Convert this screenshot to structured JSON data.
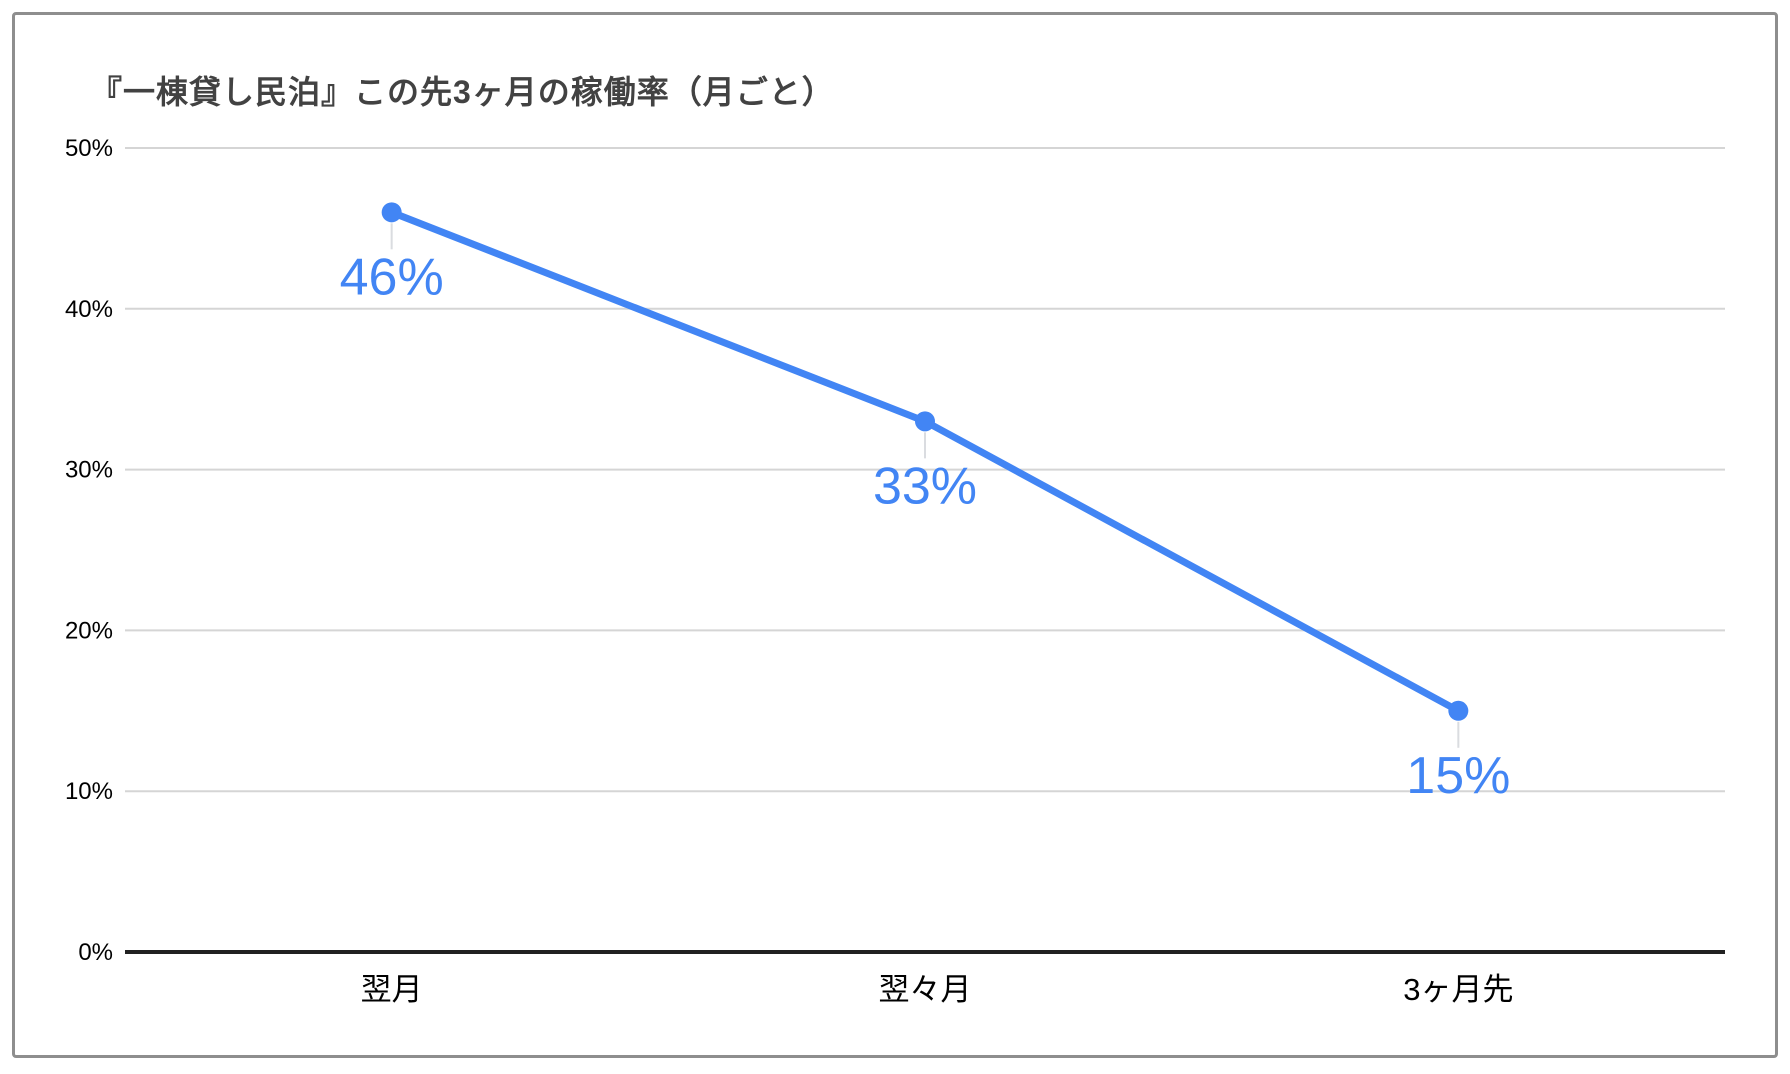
{
  "frame": {
    "background": "#ffffff",
    "border_color": "#8e8e8e"
  },
  "chart_data": {
    "type": "line",
    "title": "『一棟貸し民泊』この先3ヶ月の稼働率（月ごと）",
    "categories": [
      "翌月",
      "翌々月",
      "3ヶ月先"
    ],
    "series": [
      {
        "color": "#4285f4",
        "values": [
          46,
          33,
          15
        ],
        "point_labels": [
          "46%",
          "33%",
          "15%"
        ]
      }
    ],
    "xlabel": "",
    "ylabel": "",
    "ylim": [
      0,
      50
    ],
    "y_ticks": [
      {
        "value": 0,
        "label": "0%"
      },
      {
        "value": 10,
        "label": "10%"
      },
      {
        "value": 20,
        "label": "20%"
      },
      {
        "value": 30,
        "label": "30%"
      },
      {
        "value": 40,
        "label": "40%"
      },
      {
        "value": 50,
        "label": "50%"
      }
    ],
    "grid": true,
    "legend": "none",
    "colors": {
      "gridline": "#d5d5d5",
      "baseline": "#212121",
      "leader_line": "#dadce0",
      "tick_label": "#000000",
      "category_label": "#000000",
      "title": "#424242"
    }
  }
}
